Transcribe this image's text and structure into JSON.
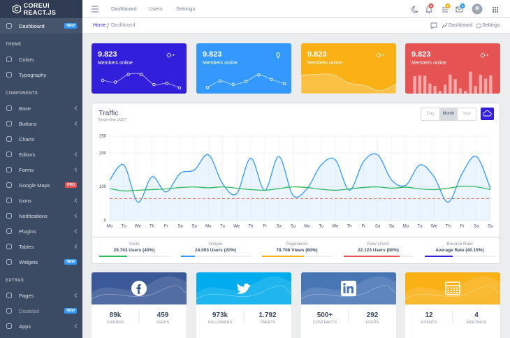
{
  "sidebar": {
    "brand": "COREUI REACT.JS",
    "items": [
      {
        "label": "Dashboard",
        "badge": "NEW",
        "badge_color": "#39f",
        "active": true
      },
      {
        "heading": "THEME"
      },
      {
        "label": "Colors"
      },
      {
        "label": "Typography"
      },
      {
        "heading": "COMPONENTS"
      },
      {
        "label": "Base",
        "submenu": true
      },
      {
        "label": "Buttons",
        "submenu": true
      },
      {
        "label": "Charts"
      },
      {
        "label": "Editors",
        "submenu": true
      },
      {
        "label": "Forms",
        "submenu": true
      },
      {
        "label": "Google Maps",
        "badge": "PRO",
        "badge_color": "#e55353"
      },
      {
        "label": "Icons",
        "submenu": true
      },
      {
        "label": "Notifications",
        "submenu": true
      },
      {
        "label": "Plugins",
        "submenu": true
      },
      {
        "label": "Tables",
        "submenu": true
      },
      {
        "label": "Widgets",
        "badge": "NEW",
        "badge_color": "#39f"
      },
      {
        "heading": "EXTRAS"
      },
      {
        "label": "Pages",
        "submenu": true
      },
      {
        "label": "Disabled",
        "badge": "NEW",
        "badge_color": "#39f",
        "disabled": true
      },
      {
        "label": "Apps",
        "submenu": true
      }
    ]
  },
  "header": {
    "nav": [
      "Dashboard",
      "Users",
      "Settings"
    ],
    "badges": [
      {
        "text": "5",
        "color": "#e55353"
      },
      {
        "text": "5",
        "color": "#f9b115"
      },
      {
        "text": "4",
        "color": "#39f"
      }
    ]
  },
  "breadcrumb": {
    "items": [
      "Home",
      "Dashboard"
    ],
    "actions": [
      "Dashboard",
      "Settings"
    ]
  },
  "cards": [
    {
      "value": "9.823",
      "label": "Members online",
      "color": "#321fdb",
      "icon": "gear",
      "chart": {
        "type": "line",
        "values": [
          65,
          59,
          84,
          84,
          51,
          55,
          40
        ],
        "ylim": [
          35,
          90
        ]
      }
    },
    {
      "value": "9.823",
      "label": "Members online",
      "color": "#3399ff",
      "icon": "pin",
      "chart": {
        "type": "line",
        "values": [
          1,
          18,
          9,
          17,
          34,
          22,
          11
        ],
        "ylim": [
          -4,
          40
        ]
      }
    },
    {
      "value": "9.823",
      "label": "Members online",
      "color": "#f9b115",
      "icon": "gear",
      "chart": {
        "type": "area",
        "values": [
          78,
          81,
          80,
          45,
          34,
          12,
          40
        ],
        "ylim": [
          0,
          100
        ]
      }
    },
    {
      "value": "9.823",
      "label": "Members online",
      "color": "#e55353",
      "icon": "gear",
      "chart": {
        "type": "bar",
        "values": [
          78,
          81,
          80,
          45,
          34,
          12,
          40,
          85,
          65,
          23,
          12,
          98,
          34,
          84,
          67,
          82
        ],
        "ylim": [
          0,
          100
        ]
      }
    }
  ],
  "traffic": {
    "title": "Traffic",
    "subtitle": "November 2017",
    "buttons": [
      "Day",
      "Month",
      "Year"
    ],
    "active": 1,
    "chart": {
      "type": "line",
      "grid": true,
      "categories": [
        "Mo",
        "Tu",
        "We",
        "Th",
        "Fr",
        "Sa",
        "Su",
        "Mo",
        "Tu",
        "We",
        "Th",
        "Fr",
        "Sa",
        "Su",
        "Mo",
        "Tu",
        "We",
        "Th",
        "Fr",
        "Sa",
        "Su",
        "Mo",
        "Tu",
        "We",
        "Th",
        "Fr",
        "Sa",
        "Su"
      ],
      "ylim": [
        0,
        250
      ],
      "yticks": [
        0,
        100,
        200,
        250
      ],
      "series": [
        {
          "color": "#3399ff",
          "fill": "rgba(51,153,255,0.1)",
          "values": [
            120,
            165,
            55,
            130,
            85,
            140,
            150,
            195,
            110,
            80,
            185,
            90,
            190,
            75,
            95,
            165,
            180,
            90,
            175,
            195,
            120,
            105,
            165,
            130,
            55,
            140,
            190,
            95
          ]
        },
        {
          "color": "#2eb85c",
          "values": [
            95,
            88,
            90,
            92,
            94,
            98,
            100,
            97,
            100,
            96,
            92,
            90,
            95,
            100,
            98,
            93,
            90,
            94,
            98,
            100,
            96,
            99,
            94,
            92,
            96,
            102,
            100,
            92
          ]
        },
        {
          "color": "#e55353",
          "dash": true,
          "values": [
            65,
            65,
            65,
            65,
            65,
            65,
            65,
            65,
            65,
            65,
            65,
            65,
            65,
            65,
            65,
            65,
            65,
            65,
            65,
            65,
            65,
            65,
            65,
            65,
            65,
            65,
            65,
            65
          ]
        }
      ]
    },
    "stats": [
      {
        "label": "Visits",
        "value": "29.703 Users (40%)",
        "progress": 40,
        "color": "#2eb85c"
      },
      {
        "label": "Unique",
        "value": "24.093 Users (20%)",
        "progress": 20,
        "color": "#3399ff"
      },
      {
        "label": "Pageviews",
        "value": "78.706 Views (60%)",
        "progress": 60,
        "color": "#f9b115"
      },
      {
        "label": "New Users",
        "value": "22.123 Users (80%)",
        "progress": 80,
        "color": "#e55353"
      },
      {
        "label": "Bounce Rate",
        "value": "Average Rate (40.15%)",
        "progress": 40.15,
        "color": "#321fdb"
      }
    ]
  },
  "social": [
    {
      "color": "#3b5998",
      "icon": "facebook",
      "stats": [
        {
          "value": "89k",
          "label": "FRIENDS"
        },
        {
          "value": "459",
          "label": "FEEDS"
        }
      ]
    },
    {
      "color": "#00aced",
      "icon": "twitter",
      "stats": [
        {
          "value": "973k",
          "label": "FOLLOWERS"
        },
        {
          "value": "1.792",
          "label": "TWEETS"
        }
      ]
    },
    {
      "color": "#4875b4",
      "icon": "linkedin",
      "stats": [
        {
          "value": "500+",
          "label": "CONTRACTS"
        },
        {
          "value": "292",
          "label": "FEEDS"
        }
      ]
    },
    {
      "color": "#f9b115",
      "icon": "calendar",
      "stats": [
        {
          "value": "12",
          "label": "EVENTS"
        },
        {
          "value": "4",
          "label": "MEETINGS"
        }
      ]
    }
  ]
}
